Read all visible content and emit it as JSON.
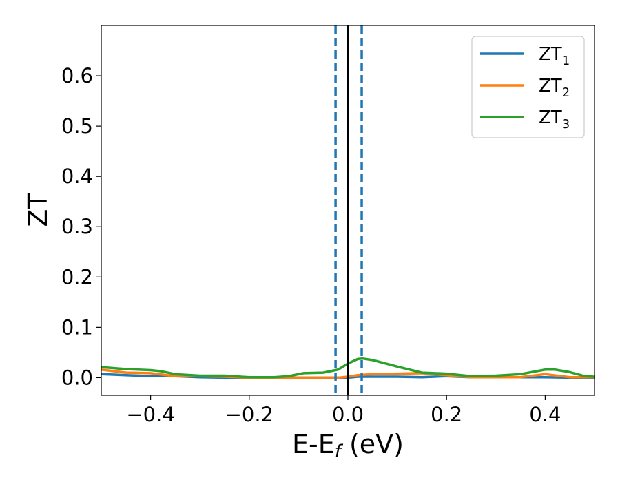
{
  "chart_data": {
    "type": "line",
    "title": "",
    "xlabel": {
      "main": "E-E",
      "sub": "f",
      "unit": " (eV)"
    },
    "ylabel": "ZT",
    "xlim": [
      -0.5,
      0.5
    ],
    "ylim": [
      -0.035,
      0.7
    ],
    "xticks": [
      {
        "value": -0.4,
        "label": "−0.4"
      },
      {
        "value": -0.2,
        "label": "−0.2"
      },
      {
        "value": 0.0,
        "label": "0.0"
      },
      {
        "value": 0.2,
        "label": "0.2"
      },
      {
        "value": 0.4,
        "label": "0.4"
      }
    ],
    "yticks": [
      {
        "value": 0.0,
        "label": "0.0"
      },
      {
        "value": 0.1,
        "label": "0.1"
      },
      {
        "value": 0.2,
        "label": "0.2"
      },
      {
        "value": 0.3,
        "label": "0.3"
      },
      {
        "value": 0.4,
        "label": "0.4"
      },
      {
        "value": 0.5,
        "label": "0.5"
      },
      {
        "value": 0.6,
        "label": "0.6"
      }
    ],
    "grid": false,
    "legend_position": "top-right",
    "series": [
      {
        "name": "ZT",
        "sub": "1",
        "color": "#1f77b4",
        "points": [
          [
            -0.5,
            0.007
          ],
          [
            -0.45,
            0.005
          ],
          [
            -0.4,
            0.003
          ],
          [
            -0.35,
            0.003
          ],
          [
            -0.3,
            0.001
          ],
          [
            -0.25,
            0.0
          ],
          [
            -0.2,
            0.0
          ],
          [
            -0.15,
            0.0
          ],
          [
            -0.1,
            0.0
          ],
          [
            -0.05,
            0.0
          ],
          [
            -0.02,
            0.0
          ],
          [
            0.0,
            0.0
          ],
          [
            0.02,
            0.002
          ],
          [
            0.05,
            0.002
          ],
          [
            0.1,
            0.002
          ],
          [
            0.15,
            0.001
          ],
          [
            0.2,
            0.003
          ],
          [
            0.25,
            0.001
          ],
          [
            0.3,
            0.001
          ],
          [
            0.35,
            0.001
          ],
          [
            0.4,
            0.001
          ],
          [
            0.45,
            0.0
          ],
          [
            0.5,
            0.0
          ]
        ]
      },
      {
        "name": "ZT",
        "sub": "2",
        "color": "#ff7f0e",
        "points": [
          [
            -0.5,
            0.016
          ],
          [
            -0.45,
            0.01
          ],
          [
            -0.4,
            0.009
          ],
          [
            -0.35,
            0.003
          ],
          [
            -0.3,
            0.003
          ],
          [
            -0.25,
            0.002
          ],
          [
            -0.2,
            0.0
          ],
          [
            -0.15,
            0.0
          ],
          [
            -0.1,
            0.0
          ],
          [
            -0.05,
            0.0
          ],
          [
            -0.02,
            0.0
          ],
          [
            0.0,
            0.002
          ],
          [
            0.02,
            0.005
          ],
          [
            0.05,
            0.007
          ],
          [
            0.1,
            0.008
          ],
          [
            0.15,
            0.009
          ],
          [
            0.2,
            0.005
          ],
          [
            0.25,
            0.001
          ],
          [
            0.3,
            0.001
          ],
          [
            0.35,
            0.001
          ],
          [
            0.4,
            0.007
          ],
          [
            0.45,
            0.001
          ],
          [
            0.5,
            0.001
          ]
        ]
      },
      {
        "name": "ZT",
        "sub": "3",
        "color": "#2ca02c",
        "points": [
          [
            -0.5,
            0.021
          ],
          [
            -0.45,
            0.017
          ],
          [
            -0.4,
            0.015
          ],
          [
            -0.38,
            0.013
          ],
          [
            -0.35,
            0.007
          ],
          [
            -0.3,
            0.004
          ],
          [
            -0.25,
            0.004
          ],
          [
            -0.2,
            0.001
          ],
          [
            -0.15,
            0.001
          ],
          [
            -0.12,
            0.003
          ],
          [
            -0.09,
            0.009
          ],
          [
            -0.05,
            0.01
          ],
          [
            -0.02,
            0.016
          ],
          [
            0.0,
            0.028
          ],
          [
            0.02,
            0.037
          ],
          [
            0.03,
            0.038
          ],
          [
            0.05,
            0.035
          ],
          [
            0.1,
            0.022
          ],
          [
            0.15,
            0.01
          ],
          [
            0.2,
            0.008
          ],
          [
            0.25,
            0.003
          ],
          [
            0.3,
            0.004
          ],
          [
            0.35,
            0.007
          ],
          [
            0.4,
            0.016
          ],
          [
            0.42,
            0.016
          ],
          [
            0.45,
            0.011
          ],
          [
            0.48,
            0.003
          ],
          [
            0.5,
            0.002
          ]
        ]
      }
    ],
    "vlines": [
      {
        "x": -0.025,
        "color": "#1f77b4",
        "style": "dashed"
      },
      {
        "x": 0.0,
        "color": "#000000",
        "style": "solid"
      },
      {
        "x": 0.028,
        "color": "#1f77b4",
        "style": "dashed"
      }
    ]
  }
}
